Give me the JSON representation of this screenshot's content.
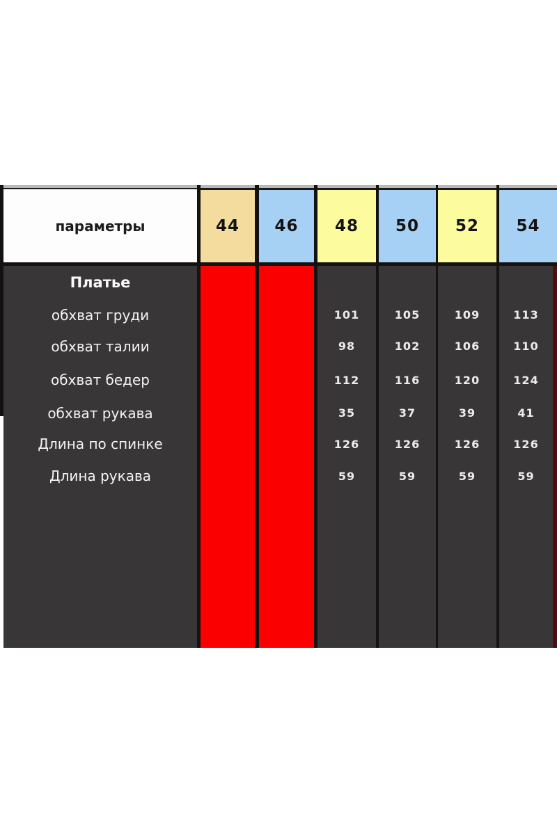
{
  "size_chart": {
    "header": {
      "param_label": "параметры",
      "sizes": [
        {
          "label": "44",
          "bg": "#f3dc9d"
        },
        {
          "label": "46",
          "bg": "#a6d1f4"
        },
        {
          "label": "48",
          "bg": "#fcfb9e"
        },
        {
          "label": "50",
          "bg": "#a6d1f4"
        },
        {
          "label": "52",
          "bg": "#fcfb9e"
        },
        {
          "label": "54",
          "bg": "#a6d1f4"
        }
      ]
    },
    "product": "Платье",
    "rows": [
      {
        "label": "обхват груди",
        "values": [
          "101",
          "105",
          "109",
          "113"
        ]
      },
      {
        "label": "обхват талии",
        "values": [
          "98",
          "102",
          "106",
          "110"
        ]
      },
      {
        "label": "обхват бедер",
        "values": [
          "112",
          "116",
          "120",
          "124"
        ]
      },
      {
        "label": "обхват рукава",
        "values": [
          "35",
          "37",
          "39",
          "41"
        ]
      },
      {
        "label": "Длина по спинке",
        "values": [
          "126",
          "126",
          "126",
          "126"
        ]
      },
      {
        "label": "Длина рукава",
        "values": [
          "59",
          "59",
          "59",
          "59"
        ]
      }
    ],
    "unavailable_sizes": [
      "44",
      "46"
    ],
    "colors": {
      "unavailable_fill": "#fb0000",
      "body_bg": "#393637",
      "separator": "#151213",
      "header_param_bg": "#fdfdfd",
      "top_line": "#b9b9b9",
      "right_edge_strip": "#4d0e0e",
      "page_bg": "#ffffff"
    }
  },
  "chart_data": {
    "type": "table",
    "title": "Платье",
    "columns": [
      "параметры",
      "44",
      "46",
      "48",
      "50",
      "52",
      "54"
    ],
    "rows": [
      [
        "обхват груди",
        null,
        null,
        101,
        105,
        109,
        113
      ],
      [
        "обхват талии",
        null,
        null,
        98,
        102,
        106,
        110
      ],
      [
        "обхват бедер",
        null,
        null,
        112,
        116,
        120,
        124
      ],
      [
        "обхват рукава",
        null,
        null,
        35,
        37,
        39,
        41
      ],
      [
        "Длина по спинке",
        null,
        null,
        126,
        126,
        126,
        126
      ],
      [
        "Длина рукава",
        null,
        null,
        59,
        59,
        59,
        59
      ]
    ],
    "notes": "Columns 44 and 46 are filled solid red — no values (sizes unavailable)."
  }
}
